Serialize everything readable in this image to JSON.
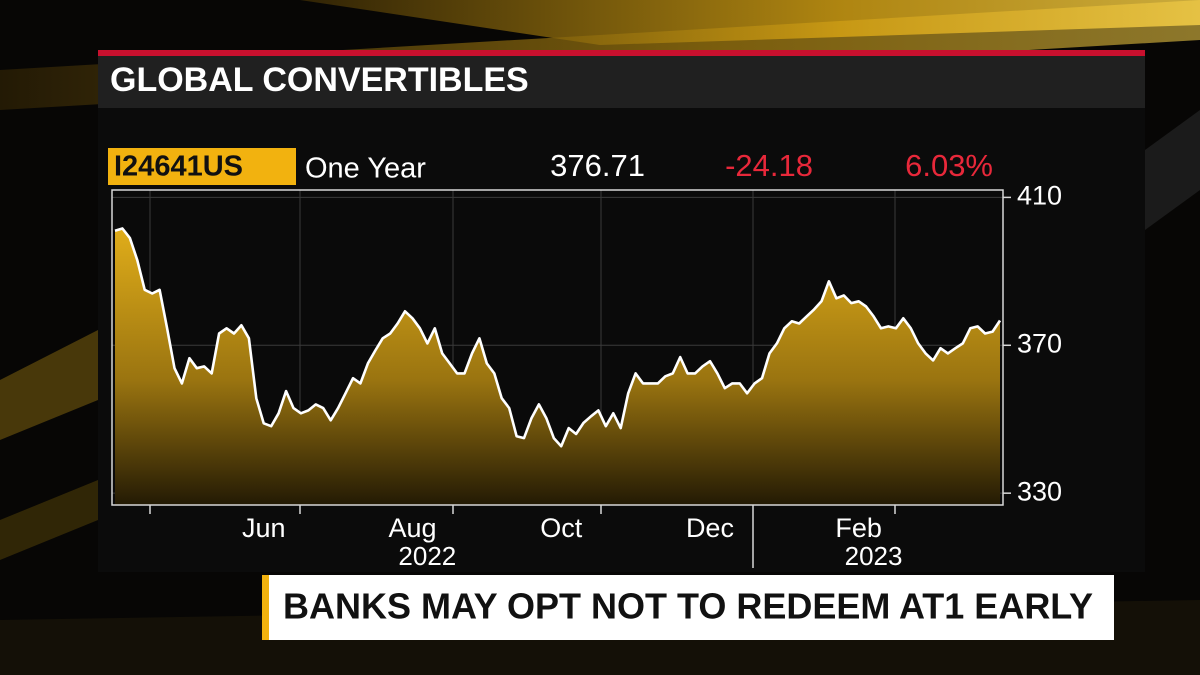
{
  "chart_data": {
    "type": "area",
    "title": "GLOBAL CONVERTIBLES",
    "ticker": "I24641US",
    "period": "One Year",
    "last_value": "376.71",
    "change": "-24.18",
    "change_percent": "6.03%",
    "headline": "BANKS MAY OPT NOT TO REDEEM AT1 EARLY",
    "categories": [
      null,
      null,
      null,
      null,
      null,
      null,
      null,
      null,
      null,
      null,
      null,
      null,
      null,
      null,
      null,
      null,
      null,
      null,
      null,
      null,
      "Jun",
      null,
      null,
      null,
      null,
      null,
      null,
      null,
      null,
      null,
      null,
      null,
      null,
      null,
      null,
      null,
      null,
      null,
      null,
      null,
      "Aug",
      null,
      null,
      null,
      null,
      null,
      null,
      null,
      null,
      null,
      null,
      null,
      null,
      null,
      null,
      null,
      null,
      null,
      null,
      null,
      "Oct",
      null,
      null,
      null,
      null,
      null,
      null,
      null,
      null,
      null,
      null,
      null,
      null,
      null,
      null,
      null,
      null,
      null,
      null,
      null,
      "Dec",
      null,
      null,
      null,
      null,
      null,
      null,
      null,
      null,
      null,
      null,
      null,
      null,
      null,
      null,
      null,
      null,
      null,
      null,
      null,
      "Feb",
      null,
      null,
      null,
      null,
      null,
      null,
      null,
      null,
      null,
      null,
      null,
      null,
      null,
      null,
      null,
      null,
      null,
      null,
      null
    ],
    "year_labels": [
      null,
      null,
      null,
      null,
      null,
      null,
      null,
      null,
      null,
      null,
      null,
      null,
      null,
      null,
      null,
      null,
      null,
      null,
      null,
      null,
      null,
      null,
      null,
      null,
      null,
      null,
      null,
      null,
      null,
      null,
      null,
      null,
      null,
      null,
      null,
      null,
      null,
      null,
      null,
      null,
      null,
      null,
      "2022",
      null,
      null,
      null,
      null,
      null,
      null,
      null,
      null,
      null,
      null,
      null,
      null,
      null,
      null,
      null,
      null,
      null,
      null,
      null,
      null,
      null,
      null,
      null,
      null,
      null,
      null,
      null,
      null,
      null,
      null,
      null,
      null,
      null,
      null,
      null,
      null,
      null,
      null,
      null,
      null,
      null,
      null,
      null,
      null,
      null,
      null,
      null,
      null,
      null,
      null,
      null,
      null,
      null,
      null,
      null,
      null,
      null,
      null,
      null,
      "2023",
      null,
      null,
      null,
      null,
      null,
      null,
      null,
      null,
      null,
      null,
      null,
      null,
      null,
      null,
      null,
      null,
      null
    ],
    "values": [
      401,
      401.6,
      399,
      393,
      385,
      384,
      385,
      374.6,
      363.8,
      359.7,
      366.5,
      363.8,
      364.3,
      362.4,
      373.2,
      374.6,
      373.2,
      375.4,
      371.9,
      355.7,
      348.9,
      348.1,
      351.6,
      357.6,
      353,
      351.6,
      352.4,
      354,
      353,
      349.7,
      353,
      357,
      361.1,
      359.7,
      365.1,
      368.6,
      371.9,
      373.2,
      375.9,
      379.2,
      377.3,
      374.6,
      370.5,
      374.6,
      367.8,
      365.1,
      362.4,
      362.4,
      367.8,
      371.9,
      365.1,
      362.4,
      355.7,
      353,
      345.4,
      344.9,
      350.3,
      354,
      350.3,
      344.9,
      342.7,
      347.6,
      346,
      349,
      350.8,
      352.4,
      348.1,
      351.6,
      347.6,
      357,
      362.4,
      359.7,
      359.7,
      359.7,
      361.6,
      362.4,
      366.8,
      362.4,
      362.4,
      364.3,
      365.7,
      362.4,
      358.4,
      359.7,
      359.7,
      357,
      359.7,
      361.1,
      367.8,
      370.5,
      374.6,
      376.5,
      375.9,
      377.8,
      379.7,
      381.9,
      387.3,
      382.7,
      383.5,
      381.4,
      381.9,
      380.5,
      377.8,
      374.6,
      375.1,
      374.6,
      377.3,
      374.6,
      370.5,
      367.8,
      365.9,
      369.2,
      367.8,
      369.2,
      370.5,
      374.6,
      375.1,
      373.2,
      373.7,
      376.7
    ],
    "color": "#d9a514",
    "line_color": "#ffffff",
    "ylim": [
      326.8,
      412
    ],
    "yticks": [
      330,
      370,
      410
    ],
    "grid": true
  }
}
